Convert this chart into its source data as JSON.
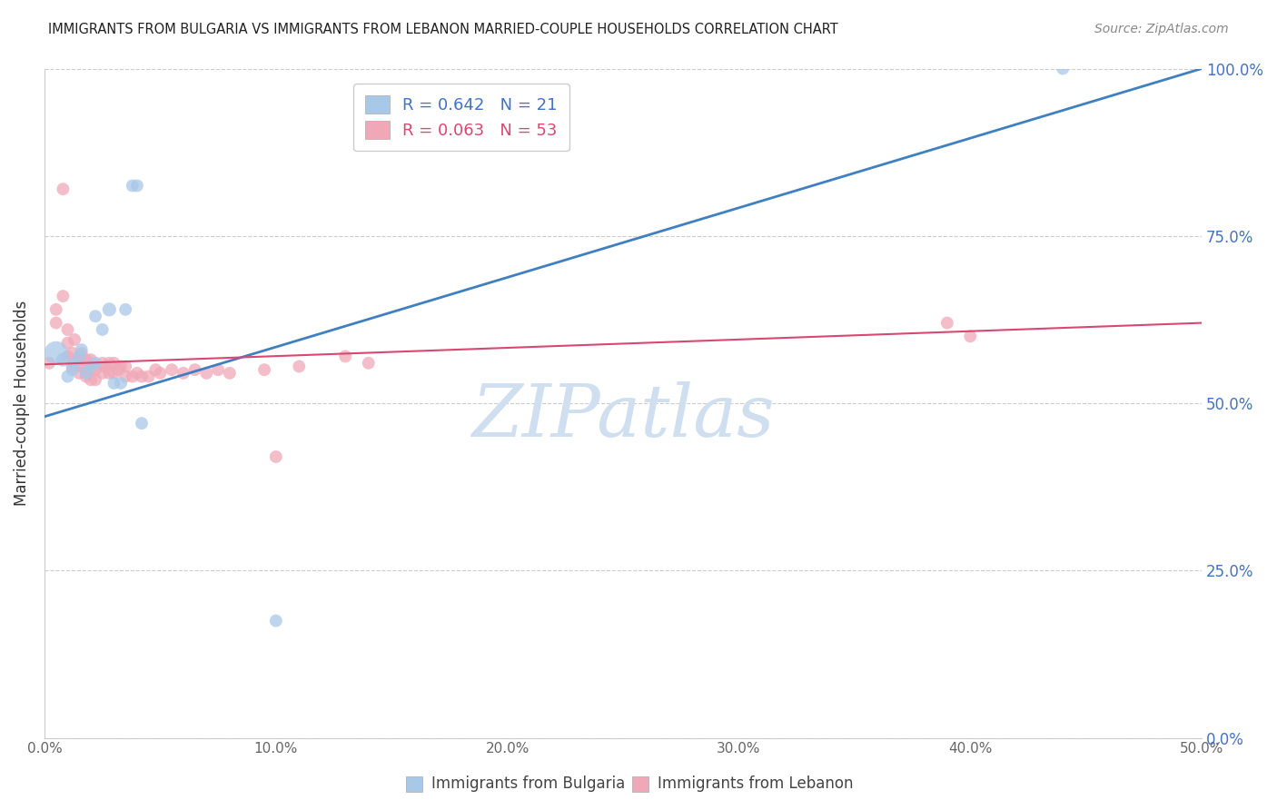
{
  "title": "IMMIGRANTS FROM BULGARIA VS IMMIGRANTS FROM LEBANON MARRIED-COUPLE HOUSEHOLDS CORRELATION CHART",
  "source": "Source: ZipAtlas.com",
  "ylabel": "Married-couple Households",
  "xlim": [
    0.0,
    0.5
  ],
  "ylim": [
    0.0,
    1.0
  ],
  "xlabel_vals": [
    0.0,
    0.1,
    0.2,
    0.3,
    0.4,
    0.5
  ],
  "xlabel_ticks": [
    "0.0%",
    "10.0%",
    "20.0%",
    "30.0%",
    "40.0%",
    "50.0%"
  ],
  "ylabel_vals": [
    0.0,
    0.25,
    0.5,
    0.75,
    1.0
  ],
  "ylabel_ticks": [
    "0.0%",
    "25.0%",
    "50.0%",
    "75.0%",
    "100.0%"
  ],
  "legend_blue": "R = 0.642   N = 21",
  "legend_pink": "R = 0.063   N = 53",
  "legend_label_blue": "Immigrants from Bulgaria",
  "legend_label_pink": "Immigrants from Lebanon",
  "bulgaria_color": "#a8c8e8",
  "lebanon_color": "#f0a8b8",
  "blue_line_color": "#4080c0",
  "pink_line_color": "#d84870",
  "watermark_text": "ZIPatlas",
  "watermark_color": "#d0dff0",
  "bulgaria_x": [
    0.005,
    0.008,
    0.01,
    0.012,
    0.013,
    0.015,
    0.016,
    0.018,
    0.02,
    0.022,
    0.022,
    0.025,
    0.028,
    0.03,
    0.033,
    0.035,
    0.038,
    0.04,
    0.042,
    0.1,
    0.44
  ],
  "bulgaria_y": [
    0.575,
    0.565,
    0.54,
    0.55,
    0.56,
    0.57,
    0.58,
    0.545,
    0.555,
    0.56,
    0.63,
    0.61,
    0.64,
    0.53,
    0.53,
    0.64,
    0.825,
    0.825,
    0.47,
    0.175,
    1.0
  ],
  "bulgaria_size": [
    350,
    120,
    100,
    100,
    100,
    100,
    100,
    100,
    100,
    100,
    100,
    100,
    120,
    100,
    100,
    100,
    100,
    100,
    100,
    100,
    100
  ],
  "lebanon_x": [
    0.002,
    0.005,
    0.005,
    0.008,
    0.008,
    0.01,
    0.01,
    0.01,
    0.012,
    0.012,
    0.013,
    0.015,
    0.015,
    0.016,
    0.016,
    0.018,
    0.018,
    0.018,
    0.02,
    0.02,
    0.02,
    0.022,
    0.022,
    0.025,
    0.025,
    0.026,
    0.028,
    0.028,
    0.03,
    0.03,
    0.032,
    0.033,
    0.035,
    0.035,
    0.038,
    0.04,
    0.042,
    0.045,
    0.048,
    0.05,
    0.055,
    0.06,
    0.065,
    0.07,
    0.075,
    0.08,
    0.095,
    0.1,
    0.11,
    0.13,
    0.14,
    0.39,
    0.4
  ],
  "lebanon_y": [
    0.56,
    0.62,
    0.64,
    0.66,
    0.82,
    0.57,
    0.59,
    0.61,
    0.555,
    0.575,
    0.595,
    0.545,
    0.565,
    0.555,
    0.575,
    0.54,
    0.55,
    0.565,
    0.535,
    0.55,
    0.565,
    0.535,
    0.55,
    0.545,
    0.56,
    0.555,
    0.545,
    0.56,
    0.545,
    0.56,
    0.55,
    0.555,
    0.54,
    0.555,
    0.54,
    0.545,
    0.54,
    0.54,
    0.55,
    0.545,
    0.55,
    0.545,
    0.55,
    0.545,
    0.55,
    0.545,
    0.55,
    0.42,
    0.555,
    0.57,
    0.56,
    0.62,
    0.6
  ],
  "lebanon_size": [
    100,
    100,
    100,
    100,
    100,
    100,
    100,
    100,
    100,
    100,
    100,
    100,
    100,
    100,
    100,
    100,
    100,
    100,
    100,
    100,
    100,
    100,
    100,
    100,
    100,
    100,
    100,
    100,
    100,
    100,
    100,
    100,
    100,
    100,
    100,
    100,
    100,
    100,
    100,
    100,
    100,
    100,
    100,
    100,
    100,
    100,
    100,
    100,
    100,
    100,
    100,
    100,
    100
  ],
  "blue_line_x": [
    0.0,
    0.5
  ],
  "blue_line_y": [
    0.48,
    1.0
  ],
  "pink_line_x": [
    0.0,
    0.5
  ],
  "pink_line_y": [
    0.558,
    0.62
  ]
}
